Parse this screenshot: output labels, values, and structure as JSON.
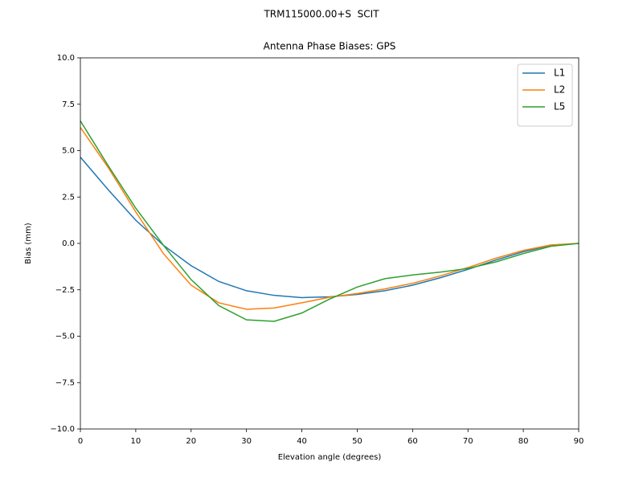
{
  "chart_data": {
    "type": "line",
    "suptitle": "TRM115000.00+S  SCIT",
    "title": "Antenna Phase Biases: GPS",
    "xlabel": "Elevation angle (degrees)",
    "ylabel": "Bias (mm)",
    "x": [
      0,
      5,
      10,
      15,
      20,
      25,
      30,
      35,
      40,
      45,
      50,
      55,
      60,
      65,
      70,
      75,
      80,
      85,
      90
    ],
    "series": [
      {
        "name": "L1",
        "color": "#1f77b4",
        "values": [
          4.65,
          2.9,
          1.25,
          -0.1,
          -1.2,
          -2.05,
          -2.55,
          -2.8,
          -2.92,
          -2.88,
          -2.75,
          -2.55,
          -2.25,
          -1.85,
          -1.4,
          -0.9,
          -0.45,
          -0.1,
          0
        ]
      },
      {
        "name": "L2",
        "color": "#ff7f0e",
        "values": [
          6.25,
          4.1,
          1.7,
          -0.55,
          -2.25,
          -3.2,
          -3.55,
          -3.48,
          -3.2,
          -2.9,
          -2.7,
          -2.45,
          -2.15,
          -1.75,
          -1.3,
          -0.8,
          -0.38,
          -0.08,
          0
        ]
      },
      {
        "name": "L5",
        "color": "#2ca02c",
        "values": [
          6.6,
          4.2,
          1.9,
          -0.1,
          -1.95,
          -3.35,
          -4.12,
          -4.2,
          -3.75,
          -3.0,
          -2.35,
          -1.9,
          -1.7,
          -1.55,
          -1.35,
          -1.0,
          -0.55,
          -0.15,
          0
        ]
      }
    ],
    "xlim": [
      0,
      90
    ],
    "xticks": [
      0,
      10,
      20,
      30,
      40,
      50,
      60,
      70,
      80,
      90
    ],
    "ylim": [
      -10,
      10
    ],
    "yticks": [
      {
        "value": -10,
        "label": "−10.0"
      },
      {
        "value": -7.5,
        "label": "−7.5"
      },
      {
        "value": -5,
        "label": "−5.0"
      },
      {
        "value": -2.5,
        "label": "−2.5"
      },
      {
        "value": 0,
        "label": "0.0"
      },
      {
        "value": 2.5,
        "label": "2.5"
      },
      {
        "value": 5,
        "label": "5.0"
      },
      {
        "value": 7.5,
        "label": "7.5"
      },
      {
        "value": 10,
        "label": "10.0"
      }
    ],
    "legend": "upper right",
    "grid": false
  }
}
